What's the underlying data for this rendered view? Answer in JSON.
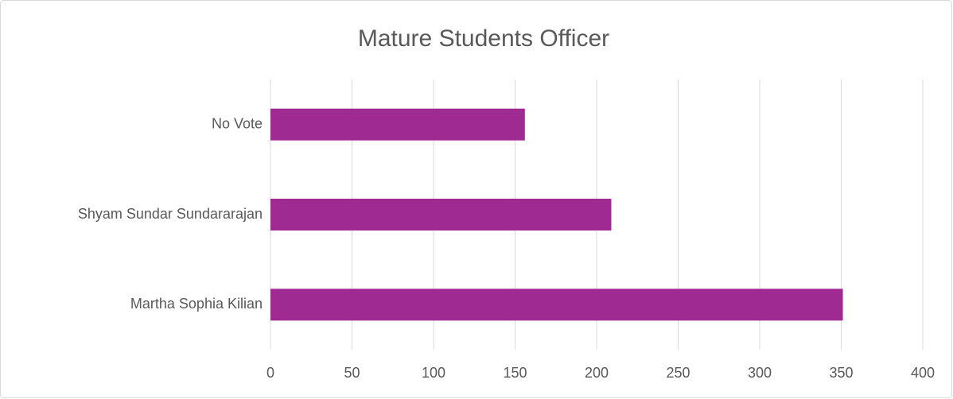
{
  "chart_data": {
    "type": "bar",
    "orientation": "horizontal",
    "title": "Mature Students Officer",
    "categories": [
      "Martha Sophia Kilian",
      "Shyam Sundar Sundararajan",
      "No Vote"
    ],
    "values": [
      351,
      209,
      156
    ],
    "color": "#9e2a92",
    "xlim": [
      0,
      400
    ],
    "xticks": [
      0,
      50,
      100,
      150,
      200,
      250,
      300,
      350,
      400
    ],
    "grid": true
  }
}
